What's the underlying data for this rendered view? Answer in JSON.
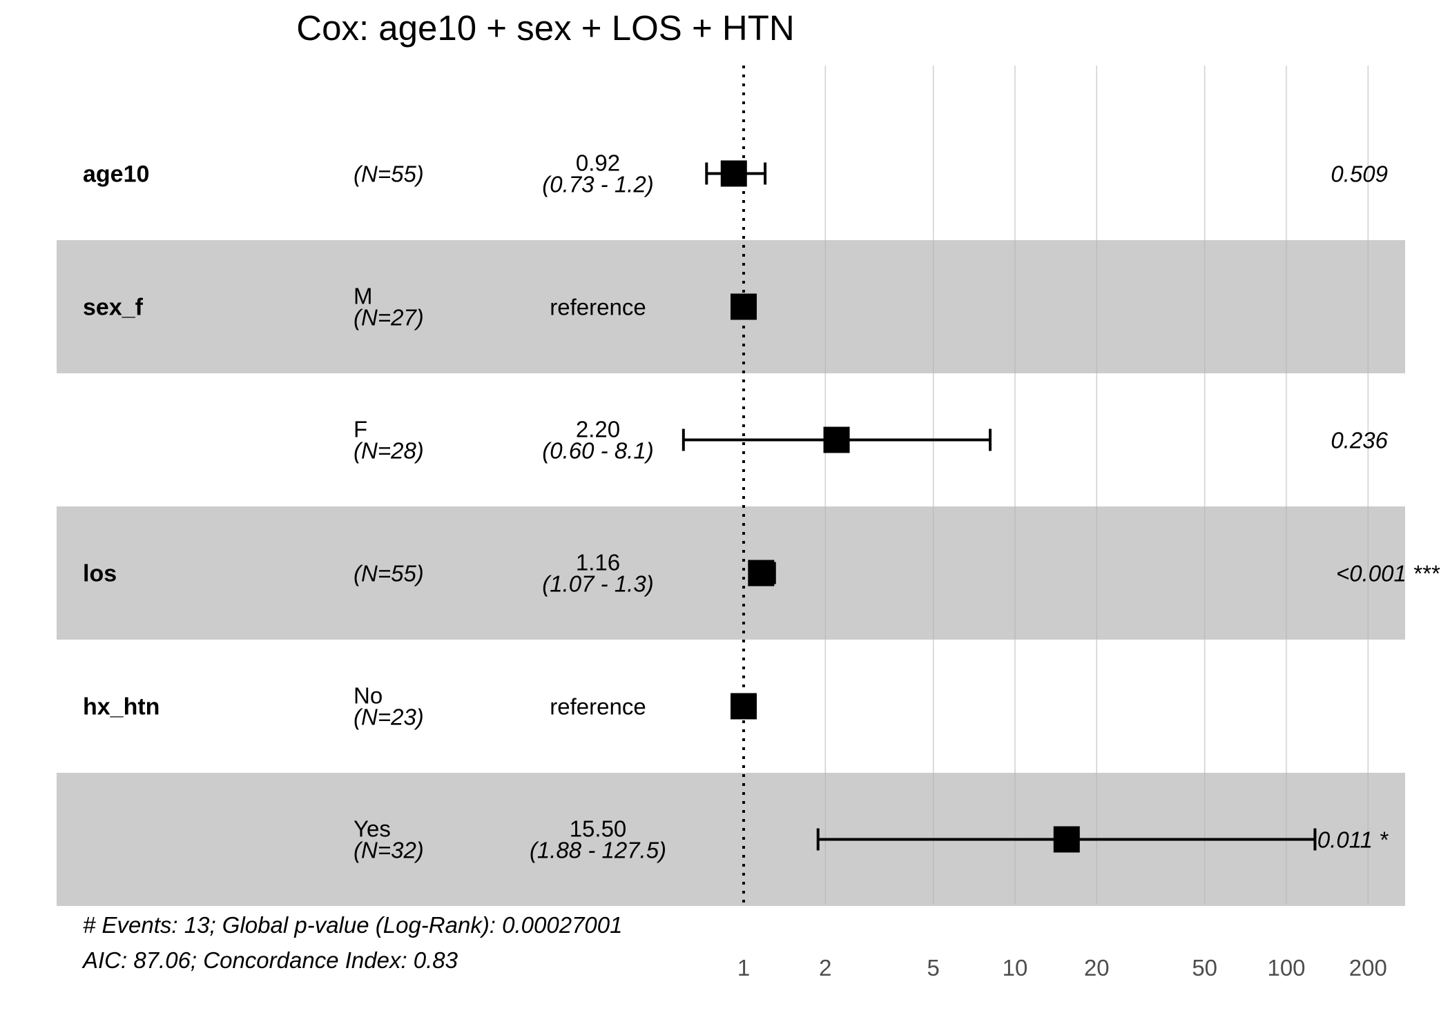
{
  "chart_data": {
    "type": "forest",
    "title": "Cox: age10 + sex + LOS + HTN",
    "x_scale": "log",
    "xlim": [
      0.5,
      300
    ],
    "reference_line": 1,
    "x_ticks": [
      1,
      2,
      5,
      10,
      20,
      50,
      100,
      200
    ],
    "x_tick_labels": [
      "1",
      "2",
      "5",
      "10",
      "20",
      "50",
      "100",
      "200"
    ],
    "grid": true,
    "rows": [
      {
        "variable": "age10",
        "level": "",
        "n_label": "(N=55)",
        "estimate": 0.92,
        "lower": 0.73,
        "upper": 1.2,
        "est_label": "0.92",
        "ci_label": "(0.73 -   1.2)",
        "p_label": "0.509",
        "shaded": false
      },
      {
        "variable": "sex_f",
        "level": "M",
        "n_label": "(N=27)",
        "estimate": 1,
        "lower": null,
        "upper": null,
        "est_label": "reference",
        "ci_label": "",
        "p_label": "",
        "shaded": true
      },
      {
        "variable": "",
        "level": "F",
        "n_label": "(N=28)",
        "estimate": 2.2,
        "lower": 0.6,
        "upper": 8.1,
        "est_label": "2.20",
        "ci_label": "(0.60 -   8.1)",
        "p_label": "0.236",
        "shaded": false
      },
      {
        "variable": "los",
        "level": "",
        "n_label": "(N=55)",
        "estimate": 1.16,
        "lower": 1.07,
        "upper": 1.3,
        "est_label": "1.16",
        "ci_label": "(1.07 -   1.3)",
        "p_label": "<0.001 ***",
        "shaded": true
      },
      {
        "variable": "hx_htn",
        "level": "No",
        "n_label": "(N=23)",
        "estimate": 1,
        "lower": null,
        "upper": null,
        "est_label": "reference",
        "ci_label": "",
        "p_label": "",
        "shaded": false
      },
      {
        "variable": "",
        "level": "Yes",
        "n_label": "(N=32)",
        "estimate": 15.5,
        "lower": 1.88,
        "upper": 127.5,
        "est_label": "15.50",
        "ci_label": "(1.88 - 127.5)",
        "p_label": "0.011 *",
        "shaded": true
      }
    ],
    "footnotes": [
      "# Events: 13; Global p-value (Log-Rank): 0.00027001",
      "AIC: 87.06; Concordance Index: 0.83"
    ],
    "colors": {
      "band": "#cccccc",
      "gridline": "#b3b3b3",
      "marker": "#000000",
      "tick_text": "#4d4d4d"
    }
  }
}
